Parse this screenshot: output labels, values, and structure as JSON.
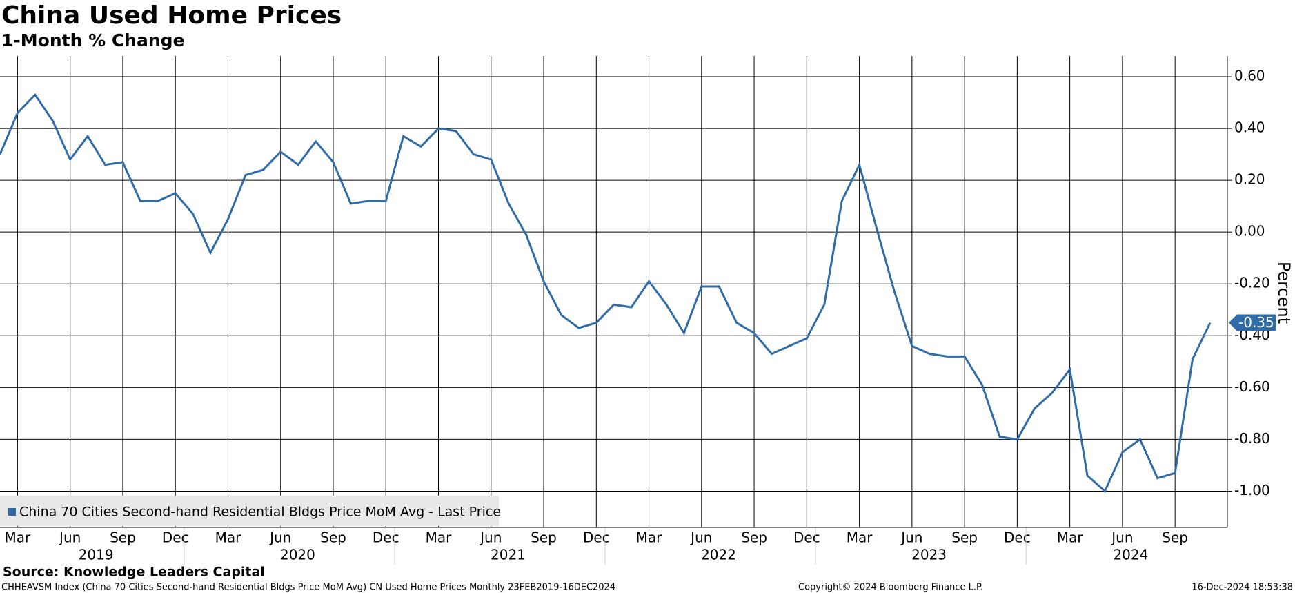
{
  "chart_data": {
    "type": "line",
    "title": "China Used Home Prices",
    "subtitle": "1-Month % Change",
    "y_label": "Percent",
    "x": [
      "2019-02",
      "2019-03",
      "2019-04",
      "2019-05",
      "2019-06",
      "2019-07",
      "2019-08",
      "2019-09",
      "2019-10",
      "2019-11",
      "2019-12",
      "2020-01",
      "2020-02",
      "2020-03",
      "2020-04",
      "2020-05",
      "2020-06",
      "2020-07",
      "2020-08",
      "2020-09",
      "2020-10",
      "2020-11",
      "2020-12",
      "2021-01",
      "2021-02",
      "2021-03",
      "2021-04",
      "2021-05",
      "2021-06",
      "2021-07",
      "2021-08",
      "2021-09",
      "2021-10",
      "2021-11",
      "2021-12",
      "2022-01",
      "2022-02",
      "2022-03",
      "2022-04",
      "2022-05",
      "2022-06",
      "2022-07",
      "2022-08",
      "2022-09",
      "2022-10",
      "2022-11",
      "2022-12",
      "2023-01",
      "2023-02",
      "2023-03",
      "2023-04",
      "2023-05",
      "2023-06",
      "2023-07",
      "2023-08",
      "2023-09",
      "2023-10",
      "2023-11",
      "2023-12",
      "2024-01",
      "2024-02",
      "2024-03",
      "2024-04",
      "2024-05",
      "2024-06",
      "2024-07",
      "2024-08",
      "2024-09",
      "2024-10",
      "2024-11"
    ],
    "series": [
      {
        "name": "China 70 Cities Second-hand Residential Bldgs Price MoM Avg - Last Price",
        "color": "#2f6ca8",
        "values": [
          0.3,
          0.46,
          0.53,
          0.43,
          0.28,
          0.37,
          0.26,
          0.27,
          0.12,
          0.12,
          0.15,
          0.07,
          -0.08,
          0.05,
          0.22,
          0.24,
          0.31,
          0.26,
          0.35,
          0.27,
          0.11,
          0.12,
          0.12,
          0.37,
          0.33,
          0.4,
          0.39,
          0.3,
          0.28,
          0.11,
          -0.01,
          -0.19,
          -0.32,
          -0.37,
          -0.35,
          -0.28,
          -0.29,
          -0.19,
          -0.28,
          -0.39,
          -0.21,
          -0.21,
          -0.35,
          -0.39,
          -0.47,
          -0.44,
          -0.41,
          -0.28,
          0.12,
          0.26,
          0.01,
          -0.23,
          -0.44,
          -0.47,
          -0.48,
          -0.48,
          -0.59,
          -0.79,
          -0.8,
          -0.68,
          -0.62,
          -0.53,
          -0.94,
          -1.0,
          -0.85,
          -0.8,
          -0.95,
          -0.93,
          -0.49,
          -0.35
        ]
      }
    ],
    "ylim": [
      -1.14,
      0.68
    ],
    "yticks": [
      {
        "value": 0.6,
        "label": "0.60"
      },
      {
        "value": 0.4,
        "label": "0.40"
      },
      {
        "value": 0.2,
        "label": "0.20"
      },
      {
        "value": 0,
        "label": "0.00"
      },
      {
        "value": -0.2,
        "label": "-0.20"
      },
      {
        "value": -0.4,
        "label": "-0.40"
      },
      {
        "value": -0.6,
        "label": "-0.60"
      },
      {
        "value": -0.8,
        "label": "-0.80"
      },
      {
        "value": -1,
        "label": "-1.00"
      }
    ],
    "xticks": [
      {
        "value": "2019-03",
        "label": "Mar"
      },
      {
        "value": "2019-06",
        "label": "Jun"
      },
      {
        "value": "2019-09",
        "label": "Sep"
      },
      {
        "value": "2019-12",
        "label": "Dec"
      },
      {
        "value": "2020-03",
        "label": "Mar"
      },
      {
        "value": "2020-06",
        "label": "Jun"
      },
      {
        "value": "2020-09",
        "label": "Sep"
      },
      {
        "value": "2020-12",
        "label": "Dec"
      },
      {
        "value": "2021-03",
        "label": "Mar"
      },
      {
        "value": "2021-06",
        "label": "Jun"
      },
      {
        "value": "2021-09",
        "label": "Sep"
      },
      {
        "value": "2021-12",
        "label": "Dec"
      },
      {
        "value": "2022-03",
        "label": "Mar"
      },
      {
        "value": "2022-06",
        "label": "Jun"
      },
      {
        "value": "2022-09",
        "label": "Sep"
      },
      {
        "value": "2022-12",
        "label": "Dec"
      },
      {
        "value": "2023-03",
        "label": "Mar"
      },
      {
        "value": "2023-06",
        "label": "Jun"
      },
      {
        "value": "2023-09",
        "label": "Sep"
      },
      {
        "value": "2023-12",
        "label": "Dec"
      },
      {
        "value": "2024-03",
        "label": "Mar"
      },
      {
        "value": "2024-06",
        "label": "Jun"
      },
      {
        "value": "2024-09",
        "label": "Sep"
      }
    ],
    "year_labels": [
      "2019",
      "2020",
      "2021",
      "2022",
      "2023",
      "2024"
    ],
    "grid": true,
    "legend": "lower left",
    "source": "Source: Knowledge Leaders Capital",
    "footer_left": "CHHEAVSM Index (China 70 Cities  Second-hand Residential Bldgs Price MoM Avg) CN Used Home Prices  Monthly 23FEB2019-16DEC2024",
    "footer_center": "Copyright© 2024 Bloomberg Finance L.P.",
    "footer_right": "16-Dec-2024 18:53:38"
  }
}
